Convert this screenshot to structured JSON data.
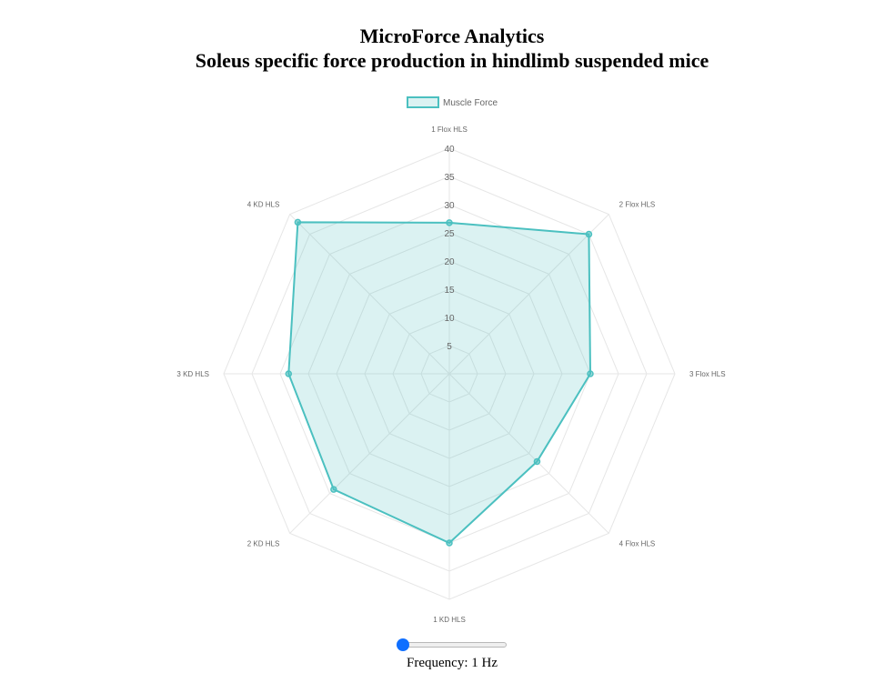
{
  "app": {
    "title": "MicroForce Analytics",
    "subtitle": "Soleus specific force production in hindlimb suspended mice"
  },
  "chart_data": {
    "type": "radar",
    "labels": [
      "1 Flox HLS",
      "2 Flox HLS",
      "3 Flox HLS",
      "4 Flox HLS",
      "1 KD HLS",
      "2 KD HLS",
      "3 KD HLS",
      "4 KD HLS"
    ],
    "series": [
      {
        "name": "Muscle Force",
        "values": [
          26.8,
          35.0,
          25.0,
          22.0,
          30.0,
          29.0,
          28.5,
          38.0
        ],
        "border_color": "#4bc0c0",
        "fill_color": "rgba(75,192,192,0.2)"
      }
    ],
    "r_axis": {
      "min": 0,
      "max": 40,
      "step": 5,
      "ticks": [
        "5",
        "10",
        "15",
        "20",
        "25",
        "30",
        "35",
        "40"
      ]
    },
    "grid": true,
    "legend_position": "top"
  },
  "controls": {
    "frequency_label": "Frequency: 1 Hz",
    "slider": {
      "min": 1,
      "max": 100,
      "value": 1,
      "accent": "#0f6fff"
    }
  }
}
